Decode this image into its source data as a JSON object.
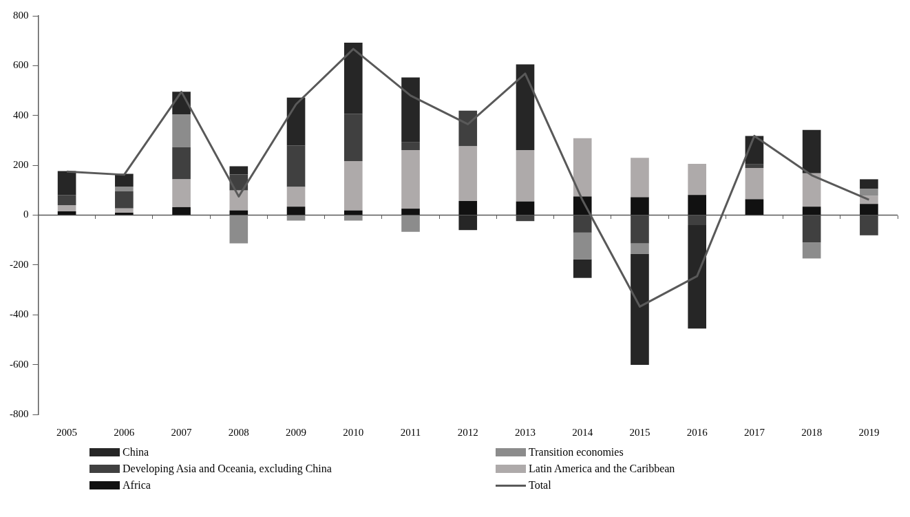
{
  "chart_data": {
    "type": "bar",
    "stacked": true,
    "categories": [
      "2005",
      "2006",
      "2007",
      "2008",
      "2009",
      "2010",
      "2011",
      "2012",
      "2013",
      "2014",
      "2015",
      "2016",
      "2017",
      "2018",
      "2019"
    ],
    "ylim": [
      -800,
      800
    ],
    "yticks": [
      -800,
      -600,
      -400,
      -200,
      0,
      200,
      400,
      600,
      800
    ],
    "grid": false,
    "ref_lines": [
      {
        "axis": "y",
        "value": 0,
        "color": "#595959"
      }
    ],
    "legend": "bottom",
    "series": [
      {
        "name": "Africa",
        "color": "#111111",
        "values": [
          15,
          10,
          32,
          19,
          34,
          19,
          26,
          57,
          55,
          75,
          72,
          81,
          64,
          34,
          45
        ]
      },
      {
        "name": "Latin America and the Caribbean",
        "color": "#aeaaaa",
        "values": [
          25,
          17,
          112,
          80,
          79,
          198,
          235,
          219,
          206,
          234,
          158,
          125,
          125,
          134,
          32
        ]
      },
      {
        "name": "Developing Asia and Oceania, excluding China",
        "color": "#404040",
        "values": [
          41,
          68,
          129,
          64,
          167,
          190,
          31,
          143,
          -24,
          -70,
          -113,
          -40,
          15,
          -110,
          -81
        ]
      },
      {
        "name": "Transition economies",
        "color": "#8c8c8c",
        "values": [
          null,
          20,
          132,
          -113,
          -22,
          -22,
          -67,
          null,
          null,
          -107,
          -43,
          null,
          null,
          -64,
          28
        ]
      },
      {
        "name": "China",
        "color": "#262626",
        "values": [
          96,
          51,
          90,
          33,
          192,
          285,
          261,
          -60,
          344,
          -75,
          -445,
          -415,
          114,
          174,
          39
        ]
      },
      {
        "name": "Total",
        "type": "line",
        "color": "#595959",
        "values": [
          175,
          162,
          495,
          75,
          445,
          667,
          480,
          365,
          568,
          60,
          -367,
          -245,
          318,
          160,
          62
        ]
      }
    ]
  }
}
